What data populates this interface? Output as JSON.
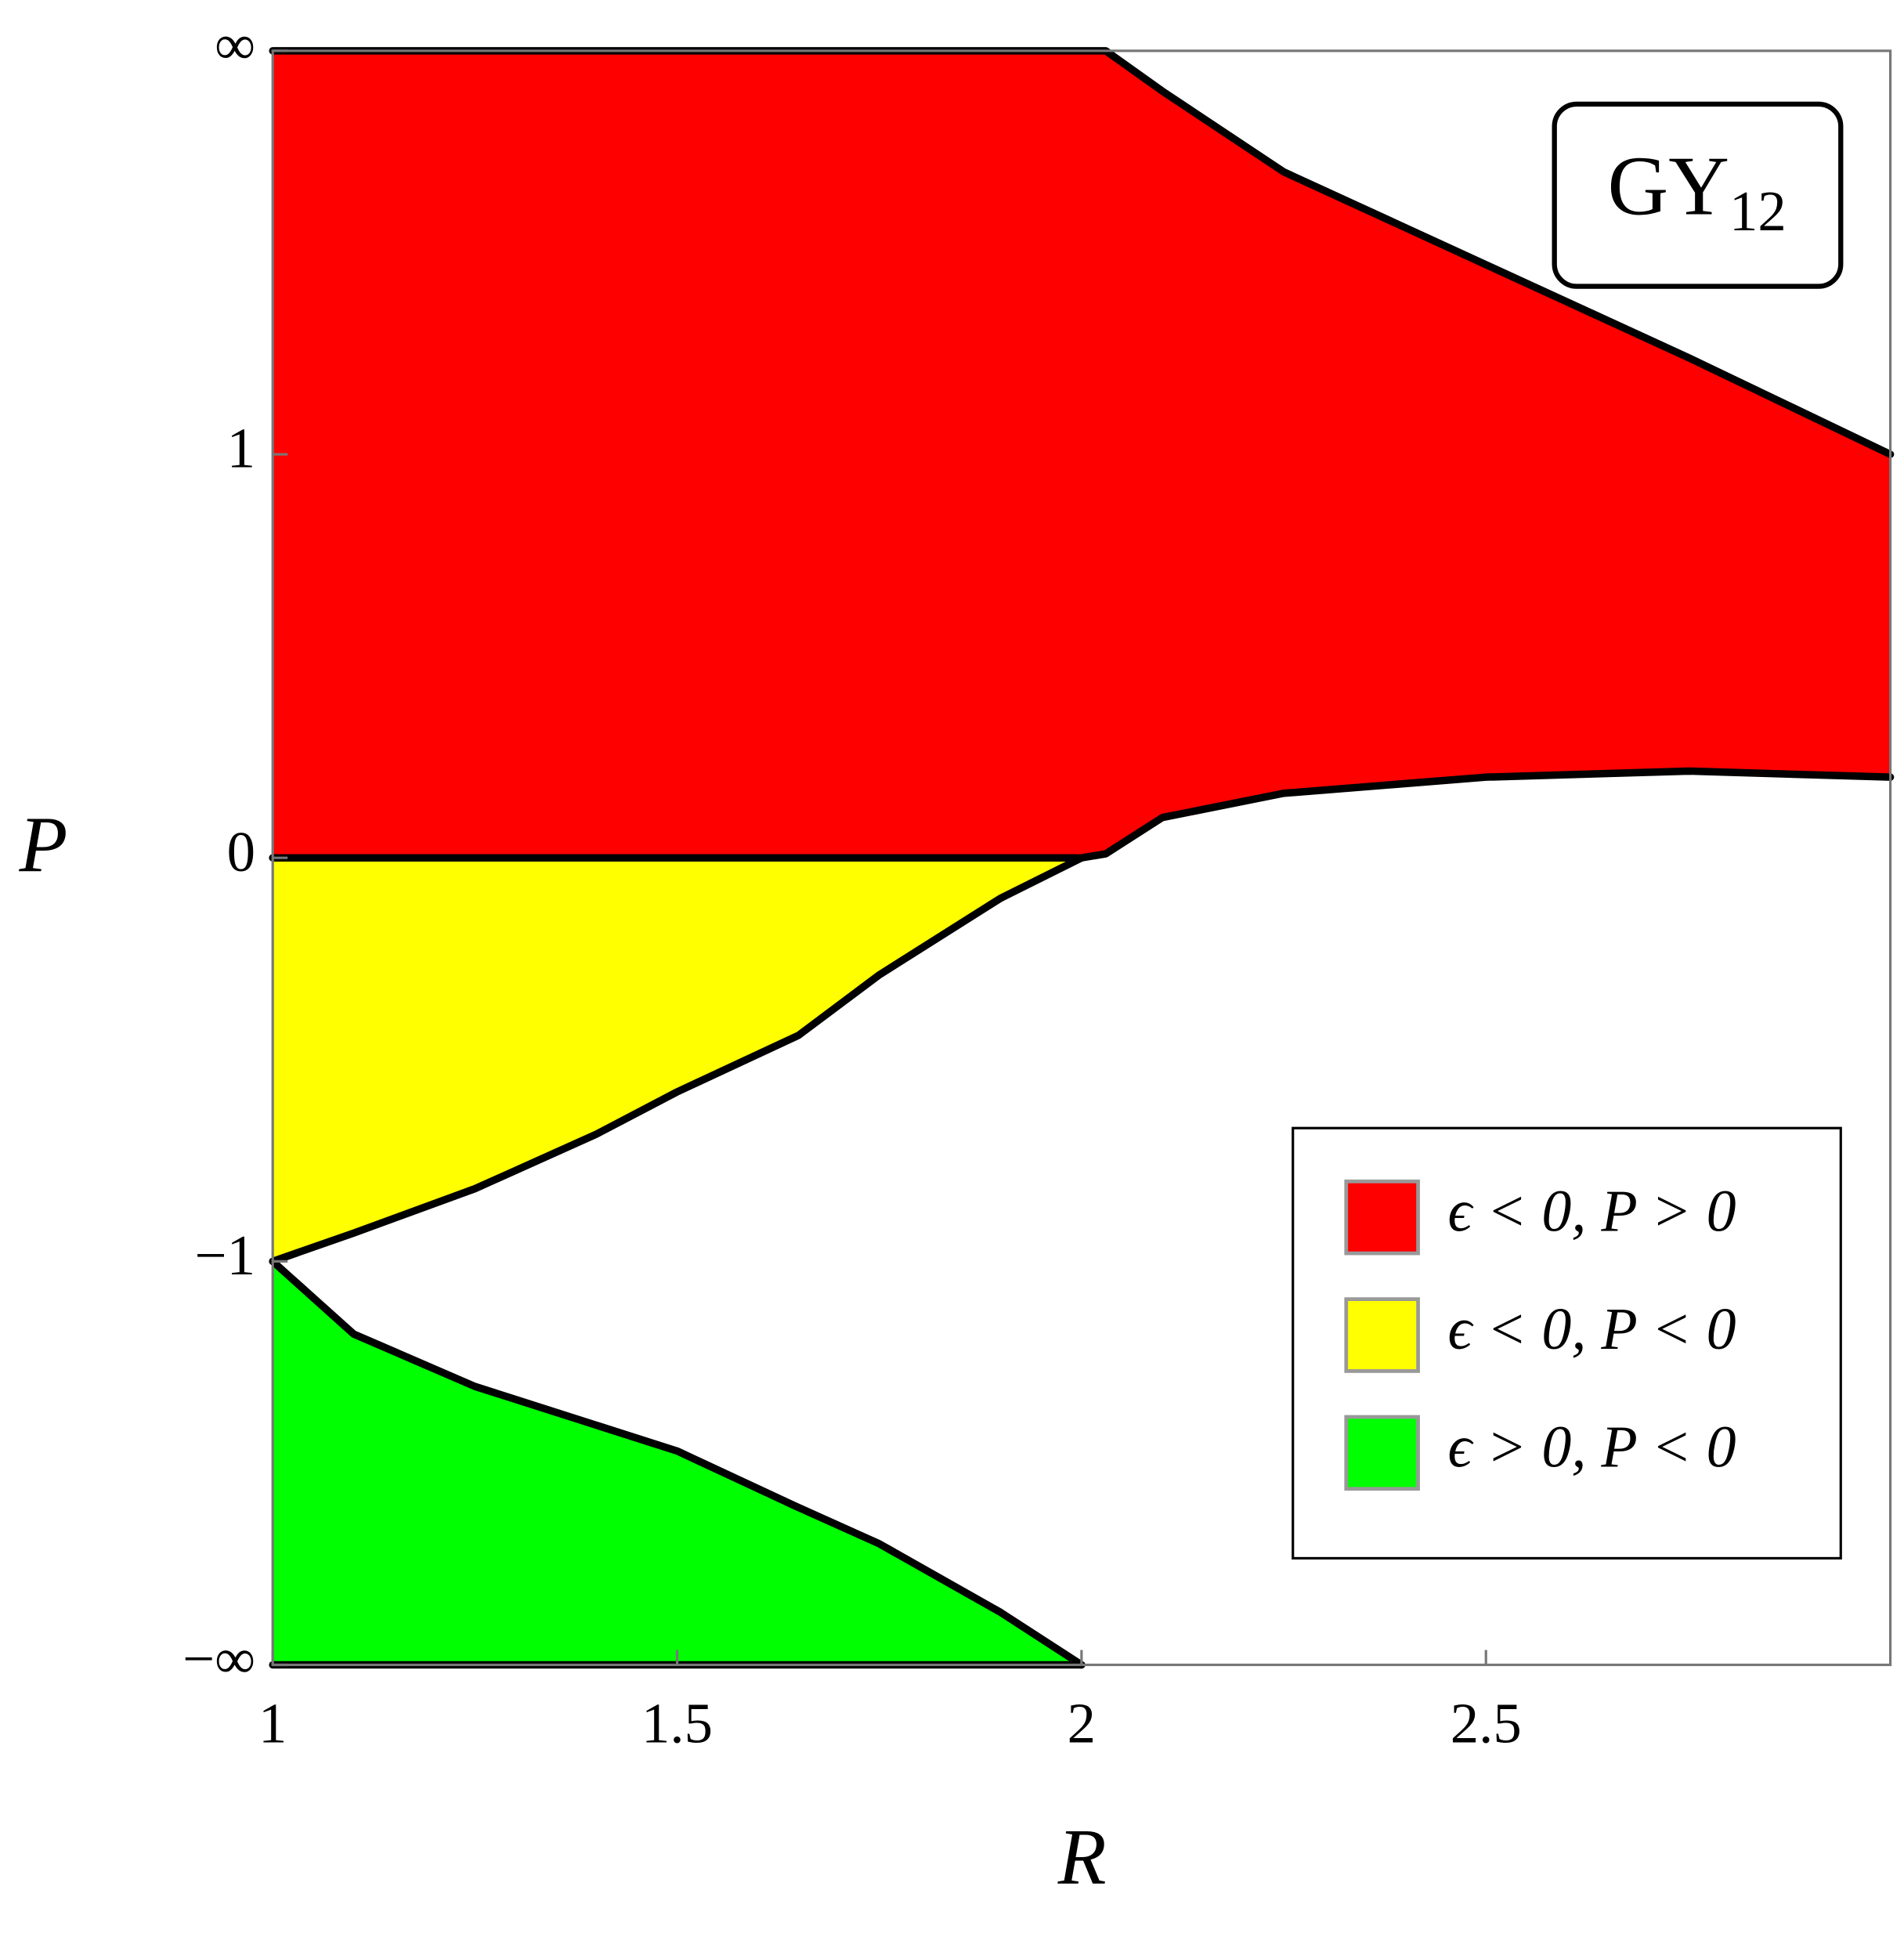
{
  "chart_data": {
    "type": "region",
    "x_label": "R",
    "y_label": "P",
    "annotation": {
      "text": "GY",
      "subscript": "12"
    },
    "xlim": [
      1,
      3
    ],
    "xticks": [
      1,
      1.5,
      2,
      2.5
    ],
    "ylim": [
      -2,
      2
    ],
    "yticks": [
      {
        "value": 2,
        "label": "∞"
      },
      1,
      0,
      {
        "value": -1,
        "label": "−1"
      },
      {
        "value": -2,
        "label": "−∞"
      }
    ],
    "grid": false,
    "legend_loc": "lower right",
    "series": [
      {
        "name": "ϵ < 0, P > 0",
        "color": "#ff0000",
        "x": [
          1,
          2,
          2.03,
          2.1,
          2.25,
          2.5,
          2.75,
          3
        ],
        "upper": [
          2,
          2,
          2,
          1.9,
          1.7,
          1.47,
          1.24,
          1.0
        ],
        "lower": [
          0,
          0,
          0.01,
          0.1,
          0.16,
          0.2,
          0.215,
          0.2
        ]
      },
      {
        "name": "ϵ < 0, P < 0",
        "color": "#ffff00",
        "x": [
          1,
          1.1,
          1.25,
          1.4,
          1.5,
          1.65,
          1.75,
          1.9,
          2
        ],
        "upper": [
          0,
          0,
          0,
          0,
          0,
          0,
          0,
          0,
          0
        ],
        "lower": [
          -1,
          -0.93,
          -0.82,
          -0.685,
          -0.58,
          -0.44,
          -0.29,
          -0.1,
          0
        ]
      },
      {
        "name": "ϵ > 0, P < 0",
        "color": "#00ff00",
        "x": [
          1,
          1.1,
          1.25,
          1.5,
          1.65,
          1.75,
          1.9,
          2
        ],
        "upper": [
          -1,
          -1.18,
          -1.31,
          -1.47,
          -1.61,
          -1.7,
          -1.87,
          -2
        ],
        "lower": [
          -2,
          -2,
          -2,
          -2,
          -2,
          -2,
          -2,
          -2
        ]
      }
    ]
  }
}
